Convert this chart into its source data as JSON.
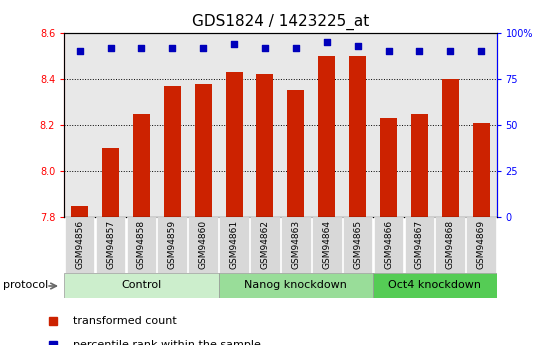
{
  "title": "GDS1824 / 1423225_at",
  "samples": [
    "GSM94856",
    "GSM94857",
    "GSM94858",
    "GSM94859",
    "GSM94860",
    "GSM94861",
    "GSM94862",
    "GSM94863",
    "GSM94864",
    "GSM94865",
    "GSM94866",
    "GSM94867",
    "GSM94868",
    "GSM94869"
  ],
  "bar_values": [
    7.85,
    8.1,
    8.25,
    8.37,
    8.38,
    8.43,
    8.42,
    8.35,
    8.5,
    8.5,
    8.23,
    8.25,
    8.4,
    8.21
  ],
  "dot_values": [
    90,
    92,
    92,
    92,
    92,
    94,
    92,
    92,
    95,
    93,
    90,
    90,
    90,
    90
  ],
  "ylim_left": [
    7.8,
    8.6
  ],
  "ylim_right": [
    0,
    100
  ],
  "yticks_left": [
    7.8,
    8.0,
    8.2,
    8.4,
    8.6
  ],
  "yticks_right": [
    0,
    25,
    50,
    75,
    100
  ],
  "ytick_labels_right": [
    "0",
    "25",
    "50",
    "75",
    "100%"
  ],
  "bar_color": "#cc2200",
  "dot_color": "#0000bb",
  "col_bg_normal": "#e8e8e8",
  "col_bg_highlight": "#d4d4d4",
  "groups": [
    {
      "label": "Control",
      "start": 0,
      "end": 4,
      "color": "#cceecc"
    },
    {
      "label": "Nanog knockdown",
      "start": 5,
      "end": 9,
      "color": "#99dd99"
    },
    {
      "label": "Oct4 knockdown",
      "start": 10,
      "end": 13,
      "color": "#55cc55"
    }
  ],
  "protocol_label": "protocol",
  "legend_bar_label": "transformed count",
  "legend_dot_label": "percentile rank within the sample",
  "title_fontsize": 11,
  "tick_fontsize": 7,
  "group_label_fontsize": 8,
  "bar_width": 0.55
}
